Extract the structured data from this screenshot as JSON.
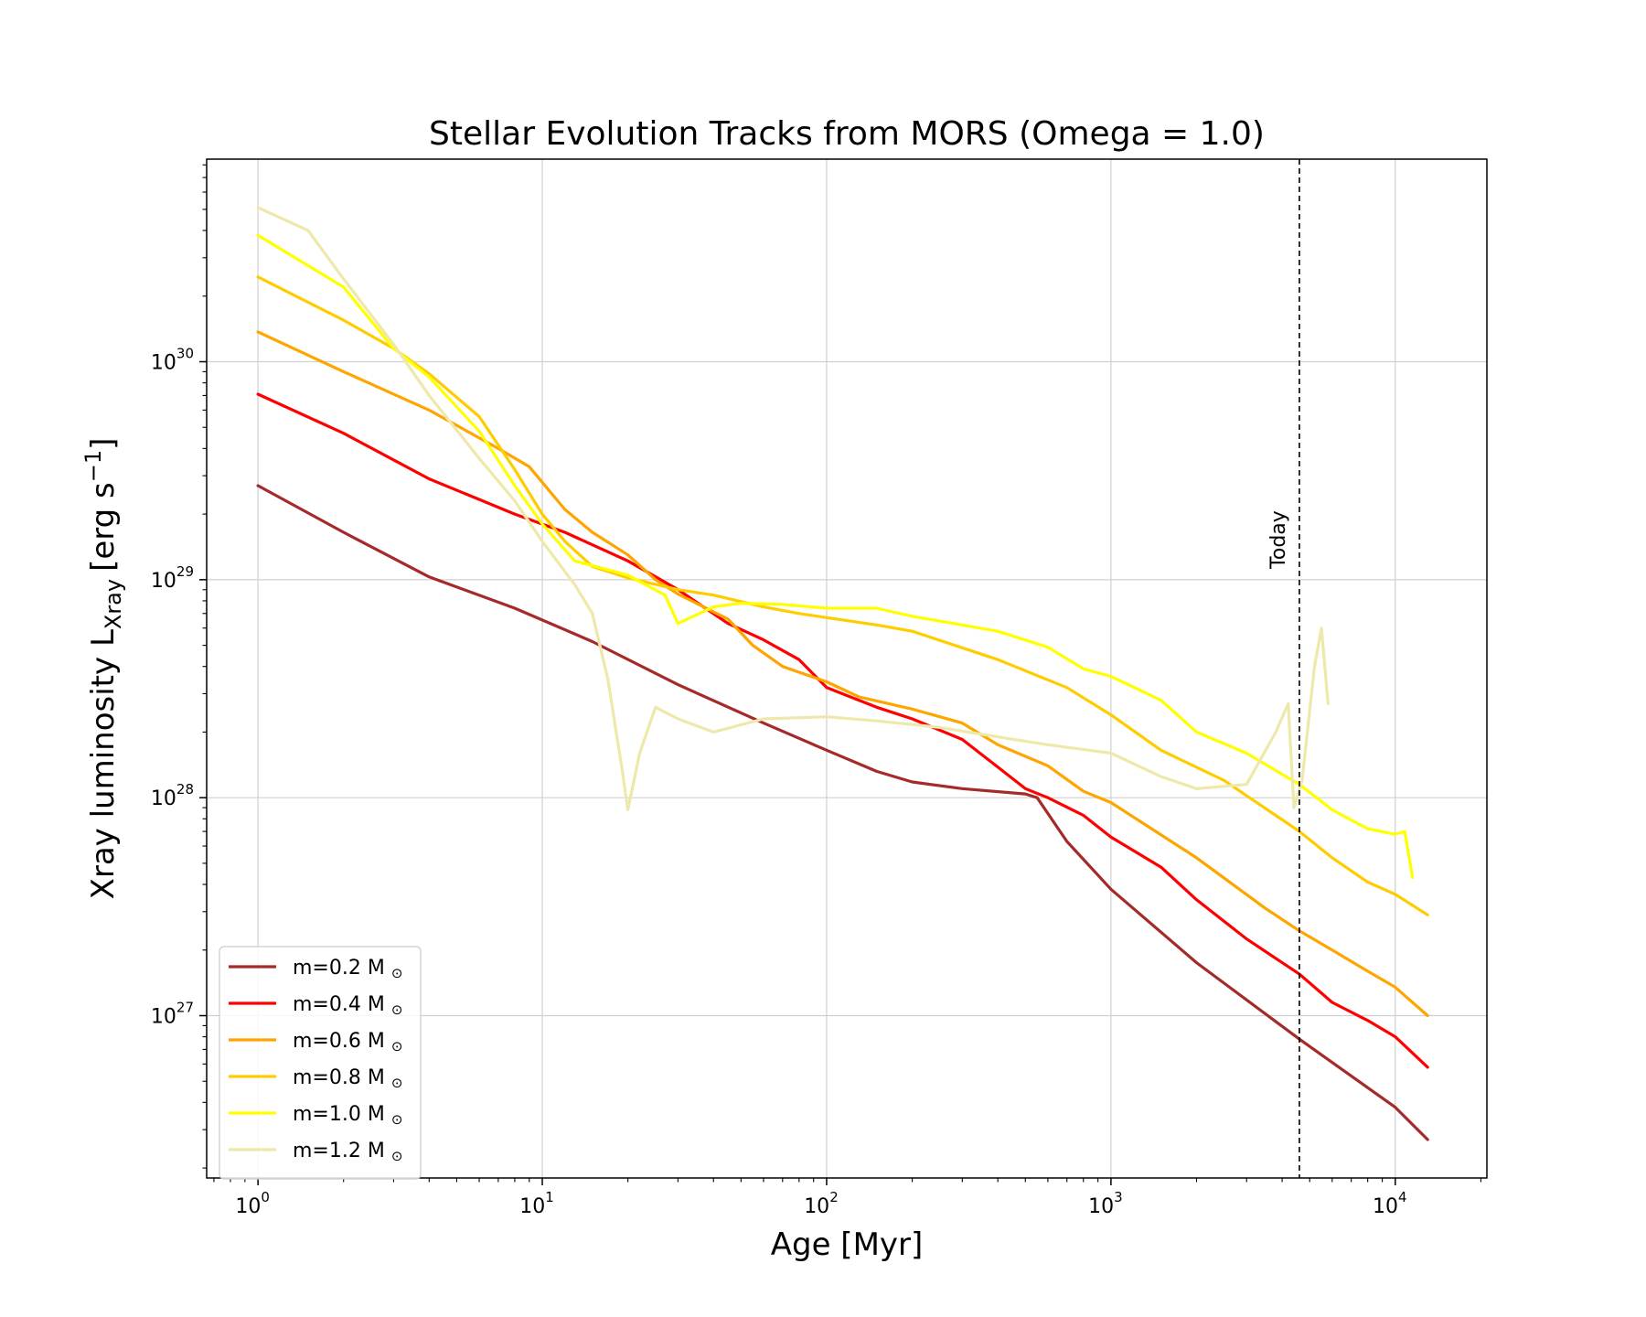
{
  "chart_data": {
    "type": "line",
    "title": "Stellar Evolution Tracks from MORS (Omega = 1.0)",
    "xlabel": "Age [Myr]",
    "ylabel": "Xray luminosity L",
    "ylabel_sub": "Xray",
    "ylabel_unit": "[erg s",
    "ylabel_unit_sup": "−1",
    "ylabel_unit_end": "]",
    "x_scale": "log",
    "y_scale": "log",
    "xlim": [
      0.66,
      21000
    ],
    "ylim": [
      1.8e+26,
      8.5e+30
    ],
    "x_major_ticks": [
      {
        "value": 1,
        "base": "10",
        "exp": "0"
      },
      {
        "value": 10,
        "base": "10",
        "exp": "1"
      },
      {
        "value": 100,
        "base": "10",
        "exp": "2"
      },
      {
        "value": 1000,
        "base": "10",
        "exp": "3"
      },
      {
        "value": 10000,
        "base": "10",
        "exp": "4"
      }
    ],
    "y_major_ticks": [
      {
        "value": 1e+27,
        "base": "10",
        "exp": "27"
      },
      {
        "value": 1e+28,
        "base": "10",
        "exp": "28"
      },
      {
        "value": 1e+29,
        "base": "10",
        "exp": "29"
      },
      {
        "value": 1e+30,
        "base": "10",
        "exp": "30"
      }
    ],
    "grid": true,
    "legend_position": "lower-left",
    "vline": {
      "x": 4600,
      "label": "Today",
      "style": "dashed",
      "color": "#000000"
    },
    "series": [
      {
        "name": "m=0.2 M",
        "name_symbol": "⊙",
        "color": "#a52a2a",
        "points": [
          [
            1,
            2.7e+29
          ],
          [
            2,
            1.65e+29
          ],
          [
            4,
            1.03e+29
          ],
          [
            8,
            7.4e+28
          ],
          [
            15,
            5.2e+28
          ],
          [
            30,
            3.3e+28
          ],
          [
            60,
            2.2e+28
          ],
          [
            100,
            1.65e+28
          ],
          [
            150,
            1.32e+28
          ],
          [
            200,
            1.18e+28
          ],
          [
            300,
            1.1e+28
          ],
          [
            500,
            1.04e+28
          ],
          [
            550,
            1e+28
          ],
          [
            700,
            6.3e+27
          ],
          [
            1000,
            3.8e+27
          ],
          [
            2000,
            1.75e+27
          ],
          [
            4600,
            7.8e+26
          ],
          [
            10000,
            3.8e+26
          ],
          [
            13000,
            2.7e+26
          ]
        ]
      },
      {
        "name": "m=0.4 M",
        "name_symbol": "⊙",
        "color": "#ff0000",
        "points": [
          [
            1,
            7.1e+29
          ],
          [
            2,
            4.7e+29
          ],
          [
            4,
            2.9e+29
          ],
          [
            8,
            2e+29
          ],
          [
            12,
            1.65e+29
          ],
          [
            20,
            1.22e+29
          ],
          [
            30,
            9e+28
          ],
          [
            45,
            6.3e+28
          ],
          [
            60,
            5.3e+28
          ],
          [
            80,
            4.3e+28
          ],
          [
            100,
            3.2e+28
          ],
          [
            150,
            2.6e+28
          ],
          [
            200,
            2.3e+28
          ],
          [
            300,
            1.85e+28
          ],
          [
            400,
            1.38e+28
          ],
          [
            500,
            1.1e+28
          ],
          [
            600,
            1e+28
          ],
          [
            800,
            8.3e+27
          ],
          [
            1000,
            6.6e+27
          ],
          [
            1500,
            4.8e+27
          ],
          [
            2000,
            3.4e+27
          ],
          [
            3000,
            2.25e+27
          ],
          [
            4600,
            1.55e+27
          ],
          [
            6000,
            1.15e+27
          ],
          [
            8000,
            9.5e+26
          ],
          [
            10000,
            8e+26
          ],
          [
            13000,
            5.8e+26
          ]
        ]
      },
      {
        "name": "m=0.6 M",
        "name_symbol": "⊙",
        "color": "#ffa500",
        "points": [
          [
            1,
            1.37e+30
          ],
          [
            2,
            9e+29
          ],
          [
            4,
            6e+29
          ],
          [
            7,
            4e+29
          ],
          [
            9,
            3.3e+29
          ],
          [
            12,
            2.1e+29
          ],
          [
            15,
            1.65e+29
          ],
          [
            20,
            1.3e+29
          ],
          [
            25,
            1e+29
          ],
          [
            30,
            8.6e+28
          ],
          [
            45,
            6.6e+28
          ],
          [
            55,
            5e+28
          ],
          [
            70,
            4e+28
          ],
          [
            100,
            3.4e+28
          ],
          [
            130,
            2.9e+28
          ],
          [
            200,
            2.55e+28
          ],
          [
            300,
            2.2e+28
          ],
          [
            400,
            1.75e+28
          ],
          [
            600,
            1.4e+28
          ],
          [
            800,
            1.07e+28
          ],
          [
            1000,
            9.5e+27
          ],
          [
            2000,
            5.3e+27
          ],
          [
            3500,
            3.1e+27
          ],
          [
            4600,
            2.45e+27
          ],
          [
            6000,
            2e+27
          ],
          [
            8000,
            1.6e+27
          ],
          [
            10000,
            1.35e+27
          ],
          [
            13000,
            1e+27
          ]
        ]
      },
      {
        "name": "m=0.8 M",
        "name_symbol": "⊙",
        "color": "#ffcc00",
        "points": [
          [
            1,
            2.45e+30
          ],
          [
            2,
            1.55e+30
          ],
          [
            3,
            1.15e+30
          ],
          [
            4,
            8.8e+29
          ],
          [
            6,
            5.6e+29
          ],
          [
            8,
            3.2e+29
          ],
          [
            10,
            2e+29
          ],
          [
            12,
            1.5e+29
          ],
          [
            15,
            1.15e+29
          ],
          [
            20,
            1.02e+29
          ],
          [
            30,
            9e+28
          ],
          [
            40,
            8.5e+28
          ],
          [
            60,
            7.5e+28
          ],
          [
            80,
            7e+28
          ],
          [
            100,
            6.7e+28
          ],
          [
            150,
            6.2e+28
          ],
          [
            200,
            5.8e+28
          ],
          [
            400,
            4.3e+28
          ],
          [
            700,
            3.2e+28
          ],
          [
            1000,
            2.4e+28
          ],
          [
            1500,
            1.65e+28
          ],
          [
            2500,
            1.2e+28
          ],
          [
            4600,
            7e+27
          ],
          [
            6000,
            5.3e+27
          ],
          [
            8000,
            4.1e+27
          ],
          [
            10000,
            3.6e+27
          ],
          [
            13000,
            2.9e+27
          ]
        ]
      },
      {
        "name": "m=1.0 M",
        "name_symbol": "⊙",
        "color": "#ffff00",
        "points": [
          [
            1,
            3.8e+30
          ],
          [
            2,
            2.2e+30
          ],
          [
            3,
            1.15e+30
          ],
          [
            4,
            8.5e+29
          ],
          [
            6,
            4.8e+29
          ],
          [
            8,
            2.7e+29
          ],
          [
            10,
            1.8e+29
          ],
          [
            13,
            1.22e+29
          ],
          [
            20,
            1.05e+29
          ],
          [
            27,
            8.5e+28
          ],
          [
            30,
            6.3e+28
          ],
          [
            40,
            7.5e+28
          ],
          [
            50,
            7.8e+28
          ],
          [
            70,
            7.7e+28
          ],
          [
            100,
            7.4e+28
          ],
          [
            150,
            7.4e+28
          ],
          [
            200,
            6.8e+28
          ],
          [
            400,
            5.8e+28
          ],
          [
            600,
            4.9e+28
          ],
          [
            800,
            3.9e+28
          ],
          [
            1000,
            3.6e+28
          ],
          [
            1500,
            2.8e+28
          ],
          [
            2000,
            2e+28
          ],
          [
            3000,
            1.6e+28
          ],
          [
            4600,
            1.15e+28
          ],
          [
            6000,
            8.8e+27
          ],
          [
            8000,
            7.2e+27
          ],
          [
            10000,
            6.8e+27
          ],
          [
            10800,
            7e+27
          ],
          [
            11500,
            4.3e+27
          ]
        ]
      },
      {
        "name": "m=1.2 M",
        "name_symbol": "⊙",
        "color": "#eee8aa",
        "points": [
          [
            1,
            5.1e+30
          ],
          [
            1.5,
            4e+30
          ],
          [
            2,
            2.4e+30
          ],
          [
            3,
            1.2e+30
          ],
          [
            4,
            7e+29
          ],
          [
            6,
            3.6e+29
          ],
          [
            8,
            2.3e+29
          ],
          [
            10,
            1.5e+29
          ],
          [
            13,
            9.5e+28
          ],
          [
            15,
            7e+28
          ],
          [
            17,
            3.5e+28
          ],
          [
            19,
            1.4e+28
          ],
          [
            20,
            8.8e+27
          ],
          [
            22,
            1.6e+28
          ],
          [
            25,
            2.6e+28
          ],
          [
            30,
            2.3e+28
          ],
          [
            40,
            2e+28
          ],
          [
            60,
            2.3e+28
          ],
          [
            100,
            2.35e+28
          ],
          [
            150,
            2.25e+28
          ],
          [
            250,
            2.1e+28
          ],
          [
            400,
            1.9e+28
          ],
          [
            600,
            1.75e+28
          ],
          [
            1000,
            1.6e+28
          ],
          [
            1500,
            1.25e+28
          ],
          [
            2000,
            1.1e+28
          ],
          [
            3000,
            1.15e+28
          ],
          [
            3800,
            2e+28
          ],
          [
            4200,
            2.7e+28
          ],
          [
            4400,
            9e+27
          ],
          [
            4700,
            1.2e+28
          ],
          [
            5200,
            4e+28
          ],
          [
            5500,
            6e+28
          ],
          [
            5800,
            2.7e+28
          ]
        ]
      }
    ]
  }
}
